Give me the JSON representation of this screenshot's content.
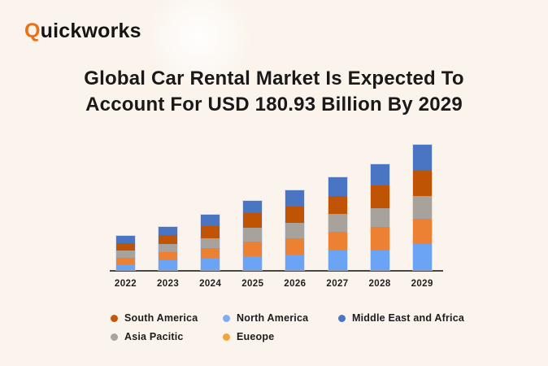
{
  "logo": {
    "first_letter": "Q",
    "rest": "uickworks"
  },
  "title": {
    "line1": "Global Car Rental Market Is Expected To",
    "line2": "Account For USD 180.93 Billion By 2029"
  },
  "chart_data": {
    "type": "bar",
    "stacked": true,
    "title": "Global Car Rental Market Is Expected To Account For USD 180.93 Billion By 2029",
    "unit": "USD billion (estimated from bar heights; no value labels shown)",
    "categories": [
      "2022",
      "2023",
      "2024",
      "2025",
      "2026",
      "2027",
      "2028",
      "2029"
    ],
    "series": [
      {
        "name": "North America",
        "color": "#6ba3f5",
        "values": [
          8.3,
          13.8,
          17.7,
          19.7,
          22.1,
          28.0,
          28.8,
          37.4
        ]
      },
      {
        "name": "Eueope",
        "color": "#ec8133",
        "values": [
          9.4,
          11.8,
          13.7,
          21.6,
          24.3,
          27.5,
          33.4,
          36.6
        ]
      },
      {
        "name": "Asia Pacitic",
        "color": "#a8a29c",
        "values": [
          11.0,
          11.8,
          14.2,
          19.7,
          21.7,
          25.6,
          27.5,
          33.4
        ]
      },
      {
        "name": "South America",
        "color": "#bf5504",
        "values": [
          10.6,
          13.8,
          17.7,
          20.9,
          24.3,
          25.5,
          32.3,
          37.4
        ]
      },
      {
        "name": "Middle East and Africa",
        "color": "#4a75c2",
        "values": [
          10.3,
          11.8,
          17.0,
          17.7,
          22.9,
          27.6,
          30.7,
          36.1
        ]
      }
    ],
    "totals": [
      49.6,
      63.0,
      80.3,
      99.6,
      115.3,
      134.2,
      152.7,
      180.9
    ],
    "stack_order": "bottom_to_top",
    "ylim": [
      0,
      190
    ],
    "grid": false,
    "y_axis_shown": false,
    "legend_position": "bottom"
  },
  "legend": {
    "items": [
      {
        "label": "South America",
        "color": "#c2570e"
      },
      {
        "label": "North America",
        "color": "#7fadf2"
      },
      {
        "label": "Middle East and Africa",
        "color": "#4a74c4"
      },
      {
        "label": "Asia Pacitic",
        "color": "#a8a5a1"
      },
      {
        "label": "Eueope",
        "color": "#f2a43a"
      }
    ]
  },
  "colors": {
    "background": "#fbf4ec",
    "axis": "#4a4742",
    "title_text": "#191919",
    "logo_accent": "#e97218",
    "logo_text": "#141414"
  }
}
